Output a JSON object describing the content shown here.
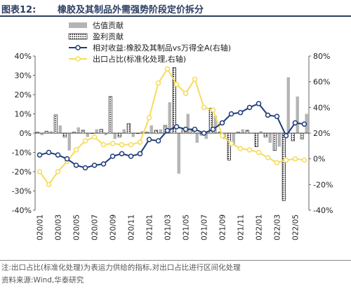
{
  "header": {
    "label": "图表12:",
    "title": "橡胶及其制品外需强势阶段定价拆分"
  },
  "footer": {
    "note": "注:出口占比(标准化处理)为表运力供给的指标,对出口占比进行区间化处理",
    "source": "资料来源:Wind,华泰研究"
  },
  "colors": {
    "valuation": "#b4b4b4",
    "earnings": "#222222",
    "relative": "#1f3d7a",
    "export": "#f5dc5a",
    "title": "#2c3e63"
  },
  "chart_data": {
    "type": "bar+line",
    "x": [
      "2020/01",
      "2020/02",
      "2020/03",
      "2020/04",
      "2020/05",
      "2020/06",
      "2020/07",
      "2020/08",
      "2020/09",
      "2020/10",
      "2020/11",
      "2020/12",
      "2021/01",
      "2021/02",
      "2021/03",
      "2021/04",
      "2021/05",
      "2021/06",
      "2021/07",
      "2021/08",
      "2021/09",
      "2021/10",
      "2021/11",
      "2021/12",
      "2022/01",
      "2022/02",
      "2022/03",
      "2022/04",
      "2022/05",
      "2022/06"
    ],
    "xtick_labels": [
      "2020/01",
      "2020/03",
      "2020/05",
      "2020/07",
      "2020/09",
      "2020/11",
      "2021/01",
      "2021/03",
      "2021/05",
      "2021/07",
      "2021/09",
      "2021/11",
      "2022/01",
      "2022/03",
      "2022/05"
    ],
    "left_axis": {
      "ylim": [
        -40,
        40
      ],
      "ticks": [
        "-40%",
        "-30%",
        "-20%",
        "-10%",
        "0%",
        "10%",
        "20%",
        "30%",
        "40%"
      ]
    },
    "right_axis": {
      "ylim": [
        -40,
        80
      ],
      "ticks": [
        "-40%",
        "-20%",
        "0%",
        "20%",
        "40%",
        "60%",
        "80%"
      ]
    },
    "legend_position": "top",
    "series": [
      {
        "name": "估值贡献",
        "type": "bar",
        "axis": "left",
        "values": [
          -1,
          1,
          4,
          -9,
          3,
          -2,
          2,
          -1,
          -3,
          2,
          -2,
          1,
          4,
          2,
          16,
          -21,
          10,
          -5,
          -3,
          9,
          -3,
          -6,
          2,
          0,
          1,
          -5,
          -7,
          29,
          19,
          10
        ]
      },
      {
        "name": "盈利贡献",
        "type": "bar",
        "axis": "left",
        "values": [
          0.5,
          1,
          9.5,
          -2,
          0.5,
          1.5,
          0,
          2,
          19,
          -2,
          5,
          0,
          0.5,
          1.5,
          4,
          34,
          2,
          1.5,
          -1,
          13,
          0.5,
          -14,
          0.5,
          1.5,
          -7,
          -2,
          -9,
          -35,
          -4,
          -3
        ]
      },
      {
        "name": "相对收益:橡胶及其制品vs万得全A(右轴)",
        "type": "line",
        "axis": "right",
        "values": [
          3,
          5,
          3,
          0,
          -5,
          -7,
          -5,
          -4,
          2,
          4,
          2,
          4,
          15,
          14,
          22,
          25,
          23,
          23,
          20,
          23,
          28,
          35,
          36,
          40,
          43,
          34,
          33,
          18,
          28,
          27
        ]
      },
      {
        "name": "出口占比(标准化处理,右轴)",
        "type": "line",
        "axis": "right",
        "values": [
          -10,
          -20,
          -10,
          -2,
          7,
          14,
          17,
          11,
          12,
          11,
          11,
          13,
          32,
          59,
          70,
          58,
          51,
          62,
          40,
          38,
          18,
          12,
          8,
          7,
          5,
          1,
          -3,
          -1,
          0,
          -1
        ]
      }
    ]
  }
}
